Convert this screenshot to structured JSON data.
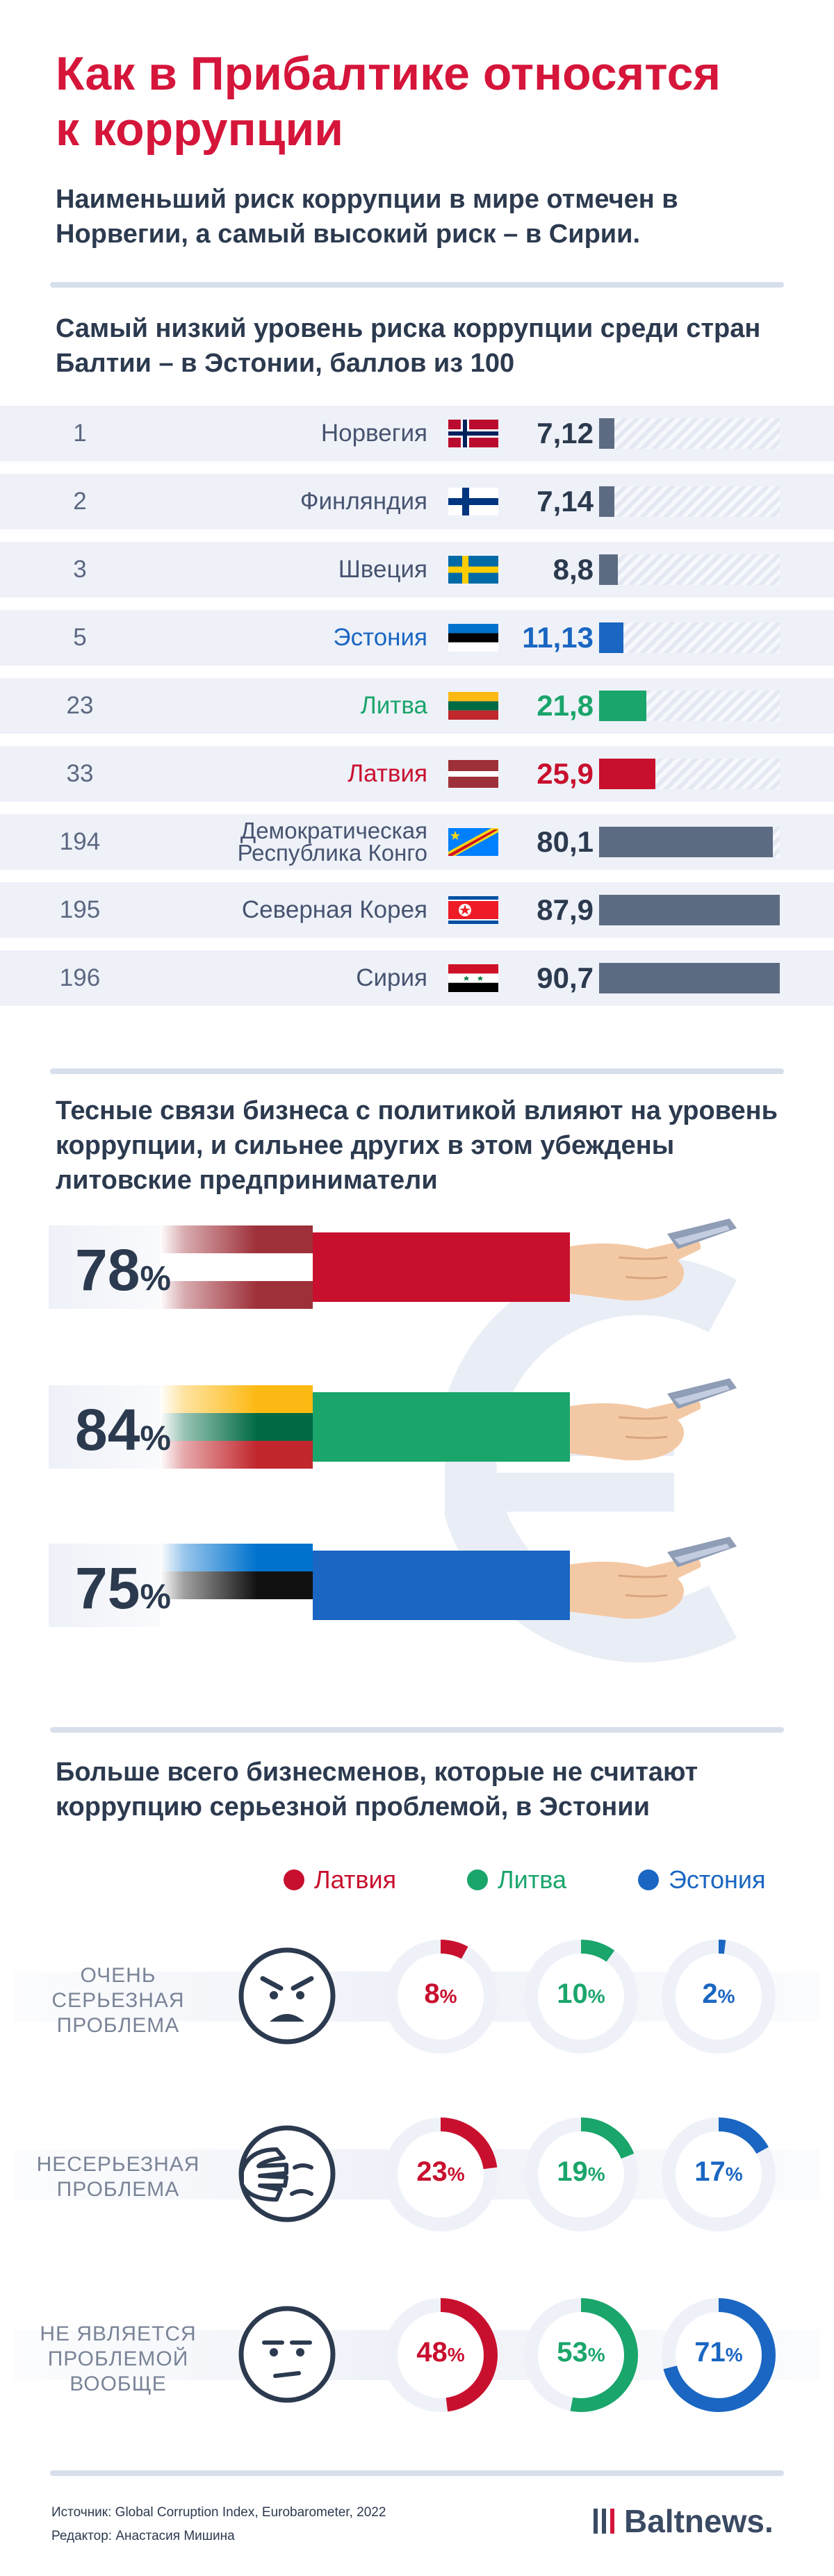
{
  "title": "Как в Прибалтике относятся к коррупции",
  "subtitle": "Наименьший риск коррупции в мире отмечен в Норвегии, а самый высокий риск – в Сирии.",
  "colors": {
    "latvia": "#c8102e",
    "lithuania": "#1aa56b",
    "estonia": "#1a66c2",
    "neutral": "#5d6b82",
    "headline": "#d5153a"
  },
  "chart_data": [
    {
      "type": "bar",
      "title": "Самый низкий уровень риска коррупции среди стран Балтии – в Эстонии, баллов из 100",
      "categories": [
        "Норвегия",
        "Финляндия",
        "Швеция",
        "Эстония",
        "Литва",
        "Латвия",
        "Демократическая Республика Конго",
        "Северная Корея",
        "Сирия"
      ],
      "ranks": [
        "1",
        "2",
        "3",
        "5",
        "23",
        "33",
        "194",
        "195",
        "196"
      ],
      "values": [
        7.12,
        7.14,
        8.8,
        11.13,
        21.8,
        25.9,
        80.1,
        87.9,
        90.7
      ],
      "value_labels": [
        "7,12",
        "7,14",
        "8,8",
        "11,13",
        "21,8",
        "25,9",
        "80,1",
        "87,9",
        "90,7"
      ],
      "flags": [
        "norway-flag",
        "finland-flag",
        "sweden-flag",
        "estonia-flag",
        "lithuania-flag",
        "latvia-flag",
        "dr-congo-flag",
        "north-korea-flag",
        "syria-flag"
      ],
      "highlight": [
        "",
        "",
        "",
        "estonia",
        "lithuania",
        "latvia",
        "",
        "",
        ""
      ],
      "ylim": [
        0,
        100
      ]
    },
    {
      "type": "bar",
      "title": "Тесные связи бизнеса с политикой влияют на уровень коррупции, и сильнее других в этом убеждены литовские предприниматели",
      "categories": [
        "latvia",
        "lithuania",
        "estonia"
      ],
      "values": [
        78,
        84,
        75
      ],
      "value_numbers": [
        "78",
        "84",
        "75"
      ],
      "unit": "%"
    },
    {
      "type": "pie",
      "title": "Больше всего бизнесменов, которые не считают коррупцию серьезной проблемой, в Эстонии",
      "legend": [
        "Латвия",
        "Литва",
        "Эстония"
      ],
      "rows": [
        {
          "label": "ОЧЕНЬ СЕРЬЕЗНАЯ ПРОБЛЕМА",
          "face": "angry-face-icon",
          "values": [
            8,
            10,
            2
          ],
          "labels": [
            "8",
            "10",
            "2"
          ]
        },
        {
          "label": "НЕСЕРЬЕЗНАЯ ПРОБЛЕМА",
          "face": "facepalm-face-icon",
          "values": [
            23,
            19,
            17
          ],
          "labels": [
            "23",
            "19",
            "17"
          ]
        },
        {
          "label": "НЕ ЯВЛЯЕТСЯ ПРОБЛЕМОЙ ВООБЩЕ",
          "face": "indifferent-face-icon",
          "values": [
            48,
            53,
            71
          ],
          "labels": [
            "48",
            "53",
            "71"
          ]
        }
      ],
      "unit": "%"
    }
  ],
  "footer": {
    "source": "Источник: Global Corruption Index, Eurobarometer, 2022",
    "editor": "Редактор: Анастасия Мишина",
    "brand": "Baltnews."
  }
}
